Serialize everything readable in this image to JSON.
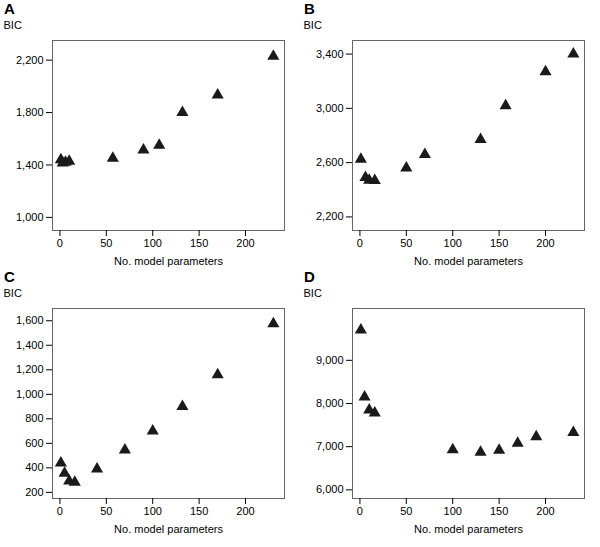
{
  "chart_data": [
    {
      "type": "scatter",
      "title": "A",
      "xlabel": "No. model parameters",
      "ylabel": "BIC",
      "x": [
        1,
        3,
        6,
        10,
        57,
        90,
        107,
        132,
        170,
        230
      ],
      "values": [
        1440,
        1415,
        1420,
        1428,
        1452,
        1515,
        1550,
        1800,
        1935,
        2230
      ],
      "xlim": [
        -8,
        242
      ],
      "ylim": [
        900,
        2350
      ],
      "xticks": [
        0,
        50,
        100,
        150,
        200
      ],
      "yticks": [
        {
          "value": 1000,
          "label": "1,000"
        },
        {
          "value": 1400,
          "label": "1,400"
        },
        {
          "value": 1800,
          "label": "1,800"
        },
        {
          "value": 2200,
          "label": "2,200"
        }
      ],
      "marker": "triangle",
      "color": "#1a1a1a"
    },
    {
      "type": "scatter",
      "title": "B",
      "xlabel": "No. model parameters",
      "ylabel": "BIC",
      "x": [
        1,
        6,
        10,
        16,
        50,
        70,
        130,
        157,
        200,
        230
      ],
      "values": [
        2625,
        2490,
        2470,
        2468,
        2560,
        2660,
        2770,
        3020,
        3270,
        3400
      ],
      "xlim": [
        -8,
        242
      ],
      "ylim": [
        2100,
        3500
      ],
      "xticks": [
        0,
        50,
        100,
        150,
        200
      ],
      "yticks": [
        {
          "value": 2200,
          "label": "2,200"
        },
        {
          "value": 2600,
          "label": "2,600"
        },
        {
          "value": 3000,
          "label": "3,000"
        },
        {
          "value": 3400,
          "label": "3,400"
        }
      ],
      "marker": "triangle",
      "color": "#1a1a1a"
    },
    {
      "type": "scatter",
      "title": "C",
      "xlabel": "No. model parameters",
      "ylabel": "BIC",
      "x": [
        1,
        5,
        10,
        16,
        40,
        70,
        100,
        132,
        170,
        230
      ],
      "values": [
        440,
        355,
        293,
        283,
        390,
        545,
        700,
        900,
        1160,
        1575
      ],
      "xlim": [
        -8,
        242
      ],
      "ylim": [
        150,
        1700
      ],
      "xticks": [
        0,
        50,
        100,
        150,
        200
      ],
      "yticks": [
        200,
        400,
        600,
        800,
        {
          "value": 1000,
          "label": "1,000"
        },
        {
          "value": 1200,
          "label": "1,200"
        },
        {
          "value": 1400,
          "label": "1,400"
        },
        {
          "value": 1600,
          "label": "1,600"
        }
      ],
      "marker": "triangle",
      "color": "#1a1a1a"
    },
    {
      "type": "scatter",
      "title": "D",
      "xlabel": "No. model parameters",
      "ylabel": "BIC",
      "x": [
        1,
        5,
        10,
        16,
        100,
        130,
        150,
        170,
        190,
        230
      ],
      "values": [
        9700,
        8150,
        7850,
        7780,
        6930,
        6870,
        6920,
        7080,
        7230,
        7330
      ],
      "xlim": [
        -8,
        242
      ],
      "ylim": [
        5800,
        10200
      ],
      "xticks": [
        0,
        50,
        100,
        150,
        200
      ],
      "yticks": [
        {
          "value": 6000,
          "label": "6,000"
        },
        {
          "value": 7000,
          "label": "7,000"
        },
        {
          "value": 8000,
          "label": "8,000"
        },
        {
          "value": 9000,
          "label": "9,000"
        }
      ],
      "marker": "triangle",
      "color": "#1a1a1a"
    }
  ]
}
